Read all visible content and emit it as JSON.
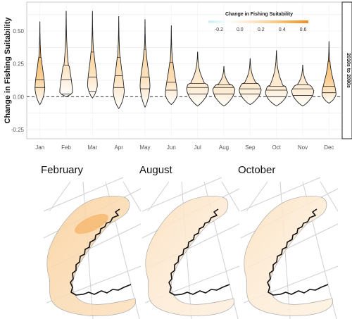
{
  "chart_data": [
    {
      "type": "violin",
      "title": "",
      "xlabel": "",
      "ylabel": "Change in Fishing Suitability",
      "facet_label": "2010s to 2090s",
      "categories": [
        "Jan",
        "Feb",
        "Mar",
        "Apr",
        "May",
        "Jun",
        "Jul",
        "Aug",
        "Sep",
        "Oct",
        "Nov",
        "Dec"
      ],
      "ylim": [
        -0.32,
        0.72
      ],
      "yticks": [
        "-0.25",
        "0.00",
        "0.25",
        "0.50"
      ],
      "ytick_values": [
        -0.25,
        0.0,
        0.25,
        0.5
      ],
      "reference_line": 0.0,
      "grid": true,
      "series": [
        {
          "min": [
            -0.06,
            0.0,
            -0.01,
            -0.09,
            -0.08,
            -0.06,
            -0.07,
            -0.07,
            -0.06,
            -0.07,
            -0.07,
            -0.05
          ],
          "max": [
            0.57,
            0.65,
            0.65,
            0.61,
            0.59,
            0.54,
            0.34,
            0.23,
            0.29,
            0.35,
            0.24,
            0.42
          ],
          "q25": [
            0.07,
            0.02,
            0.04,
            0.07,
            0.06,
            0.05,
            0.02,
            0.02,
            0.02,
            0.0,
            0.01,
            0.03
          ],
          "median": [
            0.13,
            0.13,
            0.15,
            0.16,
            0.15,
            0.11,
            0.07,
            0.07,
            0.06,
            0.05,
            0.06,
            0.08
          ],
          "q75": [
            0.3,
            0.24,
            0.34,
            0.3,
            0.36,
            0.26,
            0.1,
            0.09,
            0.1,
            0.08,
            0.09,
            0.27
          ],
          "mode": [
            0.08,
            0.04,
            0.1,
            0.05,
            0.1,
            0.03,
            0.07,
            0.06,
            0.06,
            0.04,
            0.05,
            0.03
          ],
          "width": [
            0.45,
            0.6,
            0.45,
            0.5,
            0.45,
            0.55,
            1.0,
            1.0,
            1.0,
            1.0,
            1.0,
            0.65
          ],
          "color_value": [
            0.55,
            0.25,
            0.35,
            0.3,
            0.3,
            0.35,
            0.15,
            0.15,
            0.15,
            0.15,
            0.12,
            0.5
          ]
        }
      ]
    },
    {
      "type": "colorbar",
      "title": "Change in Fishing Suitability",
      "range": [
        -0.3,
        0.65
      ],
      "ticks": [
        "-0.2",
        "0.0",
        "0.2",
        "0.4",
        "0.6"
      ],
      "tick_values": [
        -0.2,
        0.0,
        0.2,
        0.4,
        0.6
      ],
      "colors": [
        "#cfeff4",
        "#ffffff",
        "#fde6c8",
        "#f8c277",
        "#ee8e1c"
      ]
    },
    {
      "type": "heatmap",
      "panels": [
        "February",
        "August",
        "October"
      ],
      "color_value": [
        0.4,
        0.12,
        0.1
      ]
    }
  ]
}
